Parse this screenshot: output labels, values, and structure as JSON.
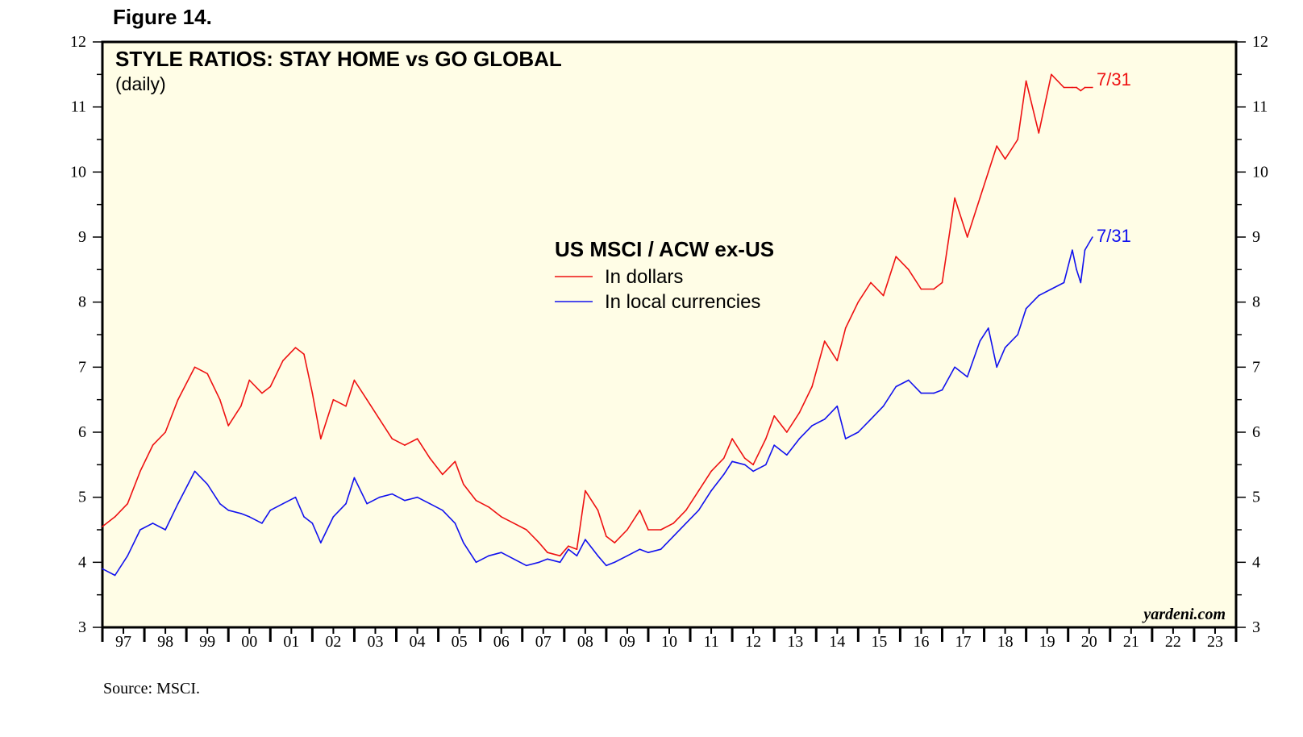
{
  "figure_label": "Figure 14.",
  "source": "Source: MSCI.",
  "watermark": "yardeni.com",
  "colors": {
    "background": "#fffde6",
    "dollars": "#ee1111",
    "local": "#1111ee",
    "axis": "#000000"
  },
  "chart_data": {
    "type": "line",
    "title": "STYLE RATIOS: STAY HOME vs GO GLOBAL",
    "subtitle": "(daily)",
    "legend_title": "US MSCI / ACW ex-US",
    "ylim": [
      3,
      12
    ],
    "yticks": [
      3,
      4,
      5,
      6,
      7,
      8,
      9,
      10,
      11,
      12
    ],
    "ytick_labels": [
      "3",
      "4",
      "5",
      "6",
      "7",
      "8",
      "9",
      "10",
      "11",
      "12"
    ],
    "xlim": [
      1997,
      2024
    ],
    "xtick_labels": [
      "97",
      "98",
      "99",
      "00",
      "01",
      "02",
      "03",
      "04",
      "05",
      "06",
      "07",
      "08",
      "09",
      "10",
      "11",
      "12",
      "13",
      "14",
      "15",
      "16",
      "17",
      "18",
      "19",
      "20",
      "21",
      "22",
      "23"
    ],
    "series": [
      {
        "name": "In dollars",
        "end_label": "7/31",
        "x": [
          1997.0,
          1997.3,
          1997.6,
          1997.9,
          1998.2,
          1998.5,
          1998.8,
          1999.2,
          1999.5,
          1999.8,
          2000.0,
          2000.3,
          2000.5,
          2000.8,
          2001.0,
          2001.3,
          2001.6,
          2001.8,
          2002.0,
          2002.2,
          2002.5,
          2002.8,
          2003.0,
          2003.3,
          2003.6,
          2003.9,
          2004.2,
          2004.5,
          2004.8,
          2005.1,
          2005.4,
          2005.6,
          2005.9,
          2006.2,
          2006.5,
          2006.8,
          2007.1,
          2007.4,
          2007.6,
          2007.9,
          2008.1,
          2008.3,
          2008.5,
          2008.8,
          2009.0,
          2009.2,
          2009.5,
          2009.8,
          2010.0,
          2010.3,
          2010.6,
          2010.9,
          2011.2,
          2011.5,
          2011.8,
          2012.0,
          2012.3,
          2012.5,
          2012.8,
          2013.0,
          2013.3,
          2013.6,
          2013.9,
          2014.2,
          2014.5,
          2014.7,
          2015.0,
          2015.3,
          2015.6,
          2015.9,
          2016.2,
          2016.5,
          2016.8,
          2017.0,
          2017.3,
          2017.6,
          2017.9,
          2018.1,
          2018.3,
          2018.5,
          2018.8,
          2019.0,
          2019.3,
          2019.6,
          2019.9,
          2020.1,
          2020.2,
          2020.3,
          2020.4,
          2020.58
        ],
        "y": [
          4.55,
          4.7,
          4.9,
          5.4,
          5.8,
          6.0,
          6.5,
          7.0,
          6.9,
          6.5,
          6.1,
          6.4,
          6.8,
          6.6,
          6.7,
          7.1,
          7.3,
          7.2,
          6.6,
          5.9,
          6.5,
          6.4,
          6.8,
          6.5,
          6.2,
          5.9,
          5.8,
          5.9,
          5.6,
          5.35,
          5.55,
          5.2,
          4.95,
          4.85,
          4.7,
          4.6,
          4.5,
          4.3,
          4.15,
          4.1,
          4.25,
          4.2,
          5.1,
          4.8,
          4.4,
          4.3,
          4.5,
          4.8,
          4.5,
          4.5,
          4.6,
          4.8,
          5.1,
          5.4,
          5.6,
          5.9,
          5.6,
          5.5,
          5.9,
          6.25,
          6.0,
          6.3,
          6.7,
          7.4,
          7.1,
          7.6,
          8.0,
          8.3,
          8.1,
          8.7,
          8.5,
          8.2,
          8.2,
          8.3,
          9.6,
          9.0,
          9.6,
          10.0,
          10.4,
          10.2,
          10.5,
          11.4,
          10.6,
          11.5,
          11.3,
          11.3,
          11.3,
          11.25,
          11.3,
          11.3
        ]
      },
      {
        "name": "In local currencies",
        "end_label": "7/31",
        "x": [
          1997.0,
          1997.3,
          1997.6,
          1997.9,
          1998.2,
          1998.5,
          1998.8,
          1999.2,
          1999.5,
          1999.8,
          2000.0,
          2000.3,
          2000.5,
          2000.8,
          2001.0,
          2001.3,
          2001.6,
          2001.8,
          2002.0,
          2002.2,
          2002.5,
          2002.8,
          2003.0,
          2003.3,
          2003.6,
          2003.9,
          2004.2,
          2004.5,
          2004.8,
          2005.1,
          2005.4,
          2005.6,
          2005.9,
          2006.2,
          2006.5,
          2006.8,
          2007.1,
          2007.4,
          2007.6,
          2007.9,
          2008.1,
          2008.3,
          2008.5,
          2008.8,
          2009.0,
          2009.2,
          2009.5,
          2009.8,
          2010.0,
          2010.3,
          2010.6,
          2010.9,
          2011.2,
          2011.5,
          2011.8,
          2012.0,
          2012.3,
          2012.5,
          2012.8,
          2013.0,
          2013.3,
          2013.6,
          2013.9,
          2014.2,
          2014.5,
          2014.7,
          2015.0,
          2015.3,
          2015.6,
          2015.9,
          2016.2,
          2016.5,
          2016.8,
          2017.0,
          2017.3,
          2017.6,
          2017.9,
          2018.1,
          2018.3,
          2018.5,
          2018.8,
          2019.0,
          2019.3,
          2019.6,
          2019.9,
          2020.1,
          2020.2,
          2020.3,
          2020.4,
          2020.58
        ],
        "y": [
          3.9,
          3.8,
          4.1,
          4.5,
          4.6,
          4.5,
          4.9,
          5.4,
          5.2,
          4.9,
          4.8,
          4.75,
          4.7,
          4.6,
          4.8,
          4.9,
          5.0,
          4.7,
          4.6,
          4.3,
          4.7,
          4.9,
          5.3,
          4.9,
          5.0,
          5.05,
          4.95,
          5.0,
          4.9,
          4.8,
          4.6,
          4.3,
          4.0,
          4.1,
          4.15,
          4.05,
          3.95,
          4.0,
          4.05,
          4.0,
          4.2,
          4.1,
          4.35,
          4.1,
          3.95,
          4.0,
          4.1,
          4.2,
          4.15,
          4.2,
          4.4,
          4.6,
          4.8,
          5.1,
          5.35,
          5.55,
          5.5,
          5.4,
          5.5,
          5.8,
          5.65,
          5.9,
          6.1,
          6.2,
          6.4,
          5.9,
          6.0,
          6.2,
          6.4,
          6.7,
          6.8,
          6.6,
          6.6,
          6.65,
          7.0,
          6.85,
          7.4,
          7.6,
          7.0,
          7.3,
          7.5,
          7.9,
          8.1,
          8.2,
          8.3,
          8.8,
          8.5,
          8.3,
          8.8,
          9.0
        ]
      }
    ]
  }
}
